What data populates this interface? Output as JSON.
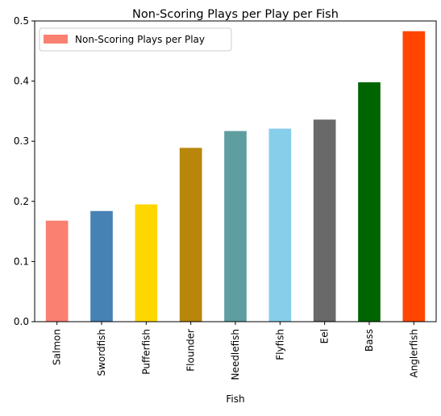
{
  "chart_data": {
    "type": "bar",
    "title": "Non-Scoring Plays per Play per Fish",
    "xlabel": "Fish",
    "ylabel": "",
    "categories": [
      "Salmon",
      "Swordfish",
      "Pufferfish",
      "Flounder",
      "Needlefish",
      "Flyfish",
      "Eel",
      "Bass",
      "Anglerfish"
    ],
    "series": [
      {
        "name": "Non-Scoring Plays per Play",
        "values": [
          0.168,
          0.184,
          0.195,
          0.289,
          0.317,
          0.321,
          0.336,
          0.398,
          0.483
        ]
      }
    ],
    "bar_colors": [
      "#fa8072",
      "#4682b4",
      "#ffd700",
      "#b8860b",
      "#5f9ea0",
      "#87ceeb",
      "#696969",
      "#006400",
      "#ff4500"
    ],
    "legend_color": "#fa8072",
    "ylim": [
      0,
      0.5
    ],
    "yticks": [
      0.0,
      0.1,
      0.2,
      0.3,
      0.4,
      0.5
    ],
    "ytick_labels": [
      "0.0",
      "0.1",
      "0.2",
      "0.3",
      "0.4",
      "0.5"
    ],
    "grid": false,
    "legend_position": "top-left"
  }
}
